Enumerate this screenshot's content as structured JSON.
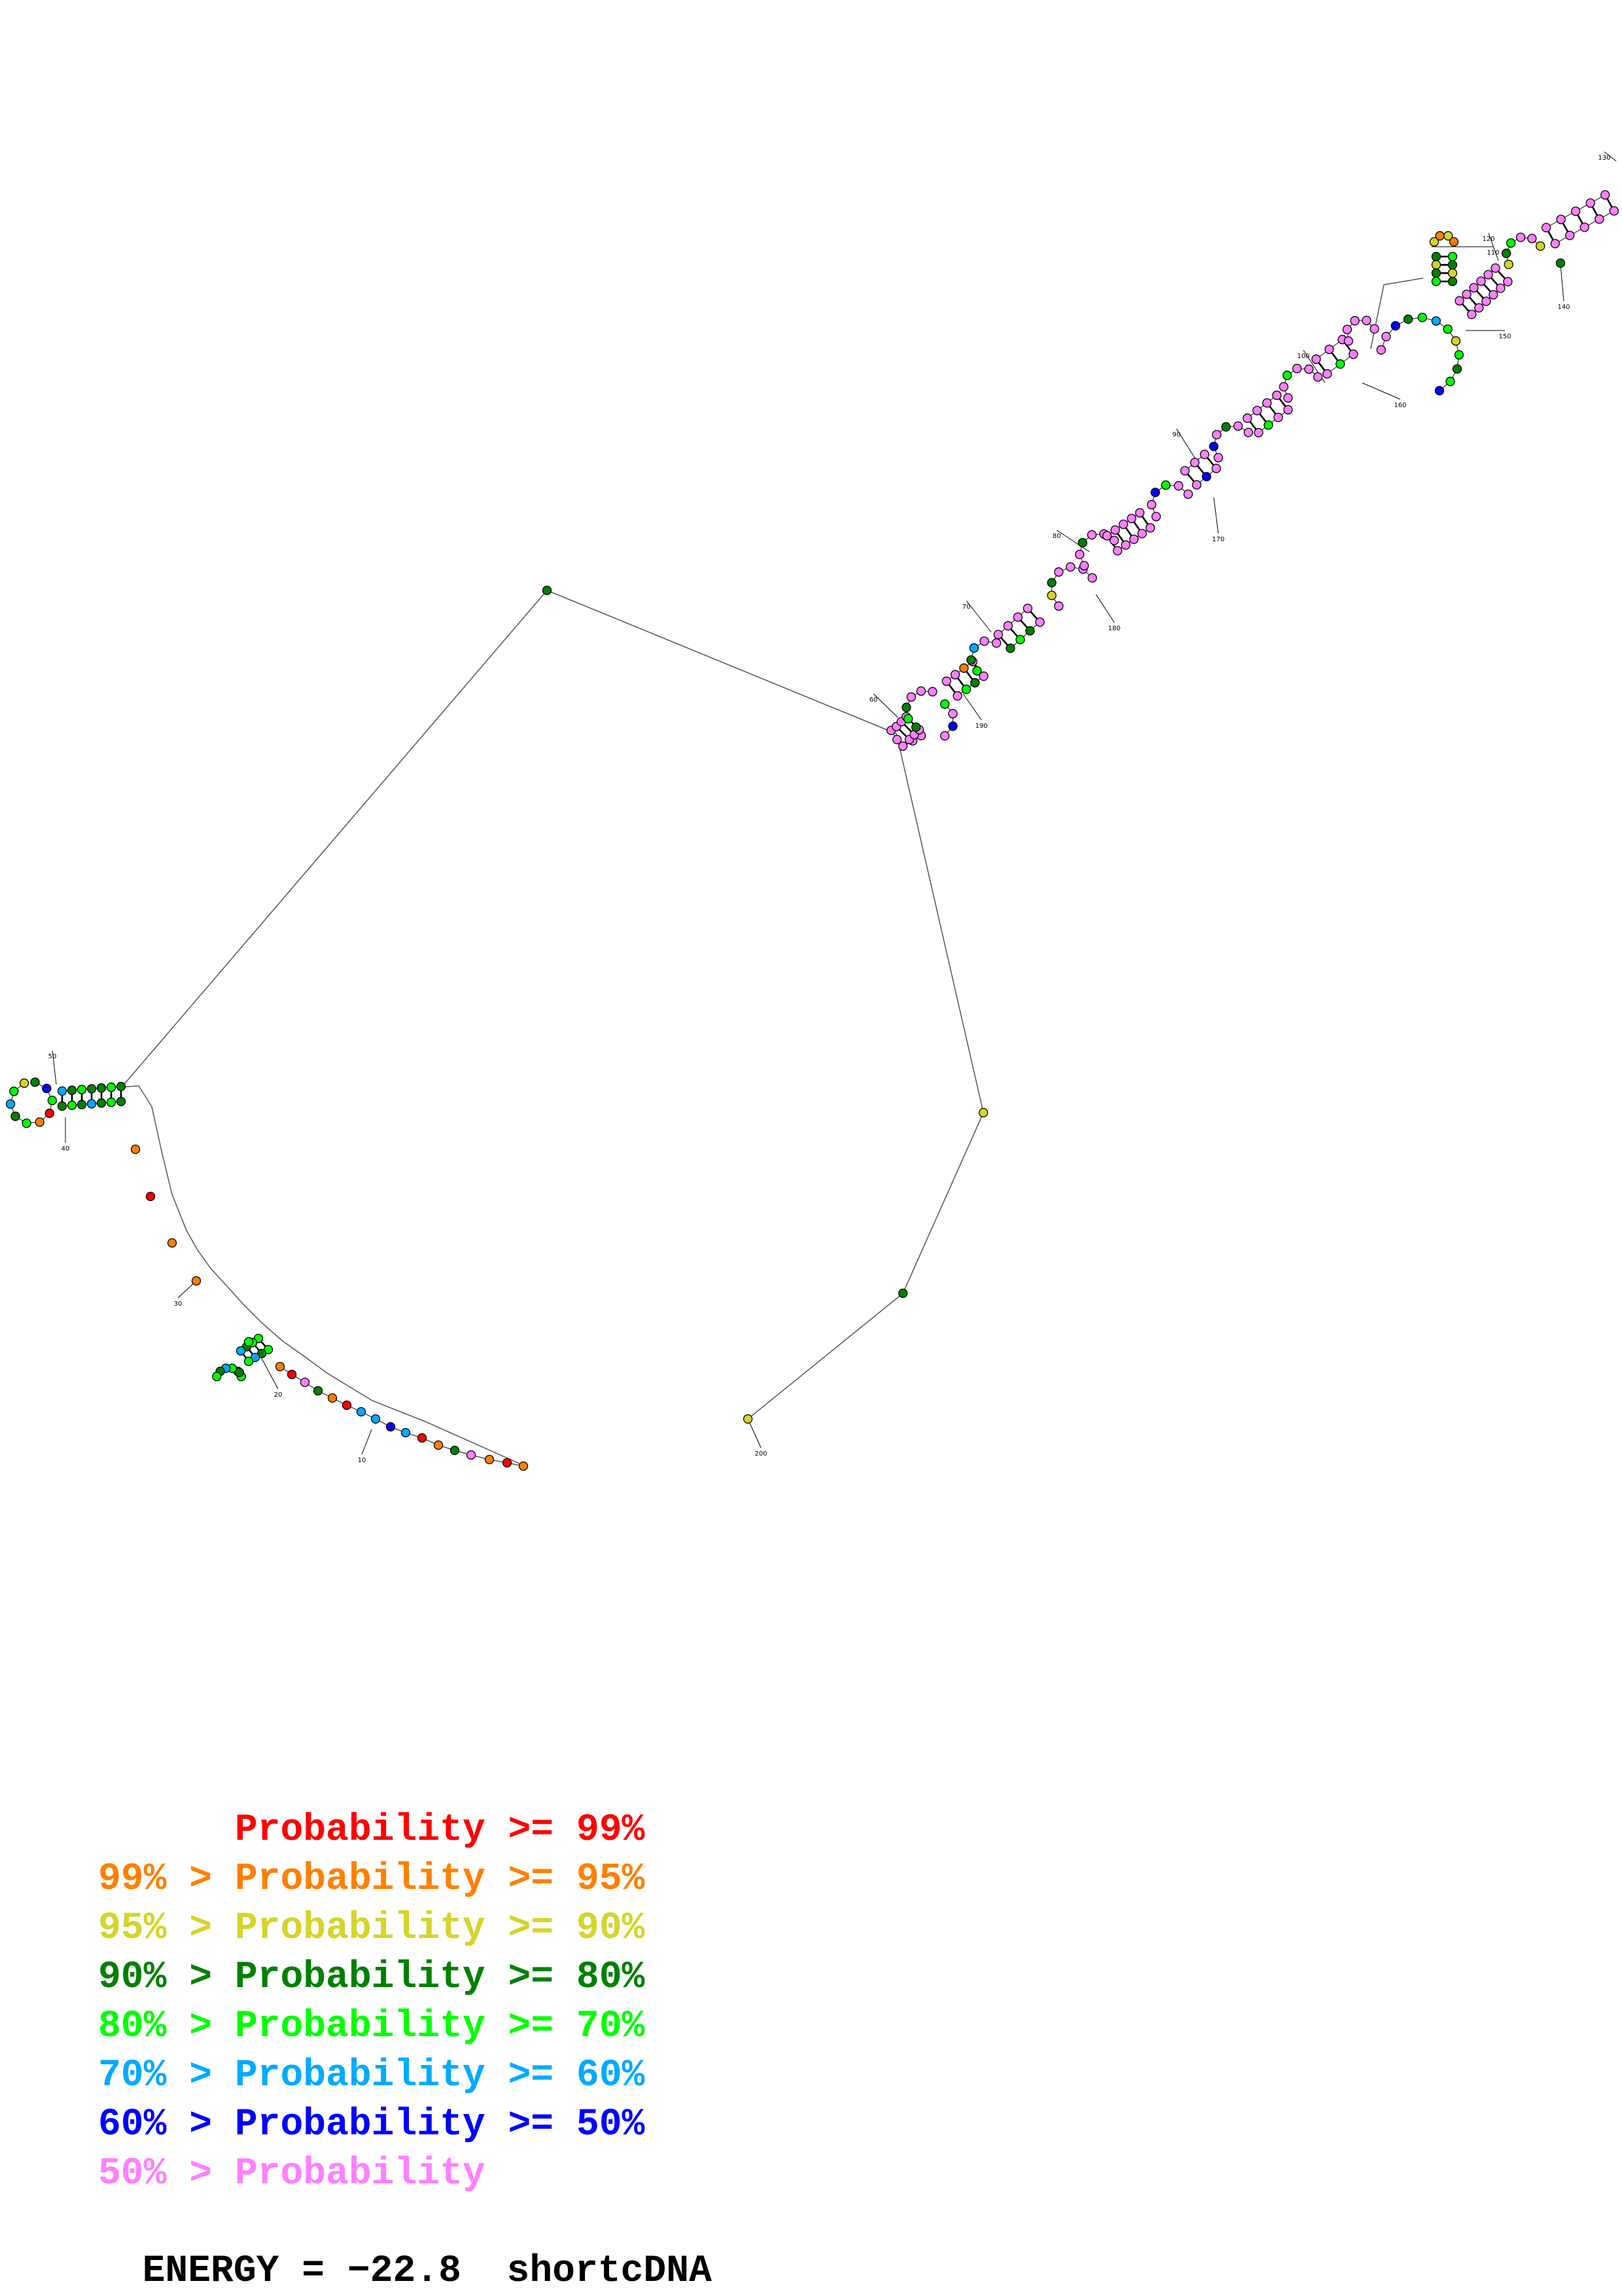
{
  "legend": [
    {
      "text": "      Probability >= 99%",
      "color": "#ff0000"
    },
    {
      "text": "99% > Probability >= 95%",
      "color": "#ff8000"
    },
    {
      "text": "95% > Probability >= 90%",
      "color": "#d4d42a"
    },
    {
      "text": "90% > Probability >= 80%",
      "color": "#008000"
    },
    {
      "text": "80% > Probability >= 70%",
      "color": "#00ff00"
    },
    {
      "text": "70% > Probability >= 60%",
      "color": "#00aaff"
    },
    {
      "text": "60% > Probability >= 50%",
      "color": "#0000ff"
    },
    {
      "text": "50% > Probability",
      "color": "#ff80ff"
    }
  ],
  "footer": {
    "energy_label": "ENERGY = −22.8",
    "sequence_name": "shortcDNA"
  },
  "position_labels": [
    "10",
    "20",
    "30",
    "40",
    "50",
    "60",
    "70",
    "80",
    "90",
    "100",
    "110",
    "120",
    "130",
    "140",
    "150",
    "160",
    "170",
    "180",
    "190",
    "200"
  ],
  "probability_class_colors": {
    "ge99": "#ff0000",
    "ge95": "#ff8000",
    "ge90": "#d4d42a",
    "ge80": "#008000",
    "ge70": "#00ff00",
    "ge60": "#00aaff",
    "ge50": "#0000ff",
    "lt50": "#ff80ff"
  }
}
